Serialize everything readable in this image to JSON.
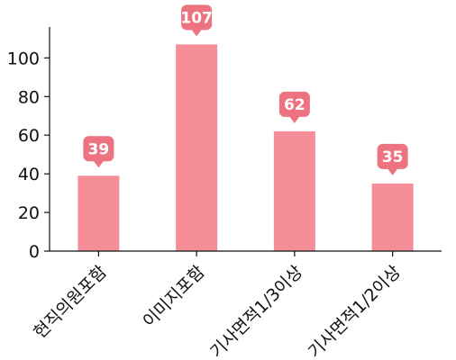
{
  "chart_data": {
    "type": "bar",
    "categories": [
      "현직의원포함",
      "이미지포함",
      "기사면적1/3이상",
      "기사면적1/2이상"
    ],
    "values": [
      39,
      107,
      62,
      35
    ],
    "ylim": [
      0,
      116
    ],
    "yticks": [
      0,
      20,
      40,
      60,
      80,
      100
    ],
    "grid": false,
    "legend": "none",
    "bar_color": "#f68e99",
    "label_bubble_color": "#ee7380"
  }
}
